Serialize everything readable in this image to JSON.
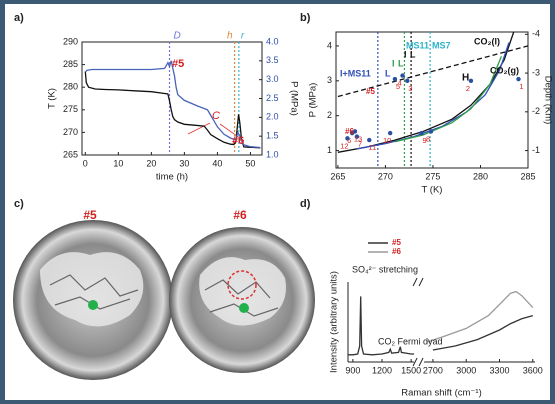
{
  "figure": {
    "panels": [
      "a)",
      "b)",
      "c)",
      "d)"
    ],
    "photos": {
      "labels": [
        "#5",
        "#6"
      ]
    }
  },
  "chart_data": [
    {
      "type": "line",
      "xlabel": "time (h)",
      "ylabel": "T (K)",
      "y2label": "P (MPa)",
      "xlim": [
        -1,
        53.5
      ],
      "xticks": [
        0,
        10,
        20,
        30,
        40,
        50
      ],
      "ylim": [
        265,
        290
      ],
      "yticks": [
        265,
        270,
        275,
        280,
        285,
        290
      ],
      "y2lim": [
        1.0,
        4.0
      ],
      "y2ticks": [
        {
          "value": 1.0,
          "label": "1.0"
        },
        1.5,
        {
          "value": 2.0,
          "label": "2.0"
        },
        2.5,
        {
          "value": 3.0,
          "label": "3.0"
        },
        3.5,
        {
          "value": 4.0,
          "label": "4.0"
        }
      ],
      "series": [
        {
          "color": "#111111",
          "x": [
            0,
            0.3,
            1,
            3,
            6,
            10,
            15,
            20,
            24,
            25,
            25.5,
            26,
            26.5,
            27,
            28,
            30,
            33,
            36,
            37,
            38,
            40,
            42,
            44,
            45,
            45.6,
            46,
            46.4,
            46.8,
            47.3,
            48,
            50,
            53
          ],
          "values": [
            283.5,
            281,
            280,
            279.6,
            279.5,
            279.4,
            279.2,
            279,
            278.6,
            278.5,
            277,
            275,
            273.5,
            272.8,
            272.3,
            271.8,
            271.6,
            271.4,
            270.5,
            269.5,
            268.6,
            267.8,
            267.4,
            267.3,
            268,
            271,
            274,
            272,
            268.5,
            266.8,
            266.7,
            266.6
          ]
        },
        {
          "color": "#4a63b8",
          "axis": "y2",
          "x": [
            0,
            0.5,
            2,
            10,
            20,
            24,
            25,
            25.5,
            26,
            26.5,
            27,
            27.5,
            28,
            30,
            34,
            37,
            38,
            39,
            40,
            42,
            44,
            45.5,
            46.2,
            46.8,
            47.5,
            48,
            50,
            53
          ],
          "values": [
            3.2,
            3.25,
            3.27,
            3.27,
            3.27,
            3.3,
            3.45,
            3.35,
            3.5,
            3.3,
            3.1,
            2.8,
            2.6,
            2.45,
            2.3,
            2.2,
            2.05,
            1.9,
            1.75,
            1.55,
            1.45,
            1.4,
            1.6,
            1.5,
            1.35,
            1.27,
            1.22,
            1.2
          ]
        }
      ],
      "vlines": [
        {
          "value": 25.5,
          "label": "D",
          "color": "#6f74d6"
        },
        {
          "value": 45.2,
          "label": "h",
          "color": "#e0893a"
        },
        {
          "value": 46.5,
          "label": "r",
          "color": "#3ab3c6"
        }
      ],
      "annotations": [
        "#5",
        "#6",
        "C"
      ]
    },
    {
      "type": "line",
      "xlabel": "T (K)",
      "ylabel": "P (MPa)",
      "y2label": "Depth (Km)",
      "xlim": [
        264.8,
        285
      ],
      "xticks": [
        265,
        270,
        275,
        280,
        285
      ],
      "ylim": [
        0.5,
        4.4
      ],
      "yticks": [
        1,
        2,
        3,
        4
      ],
      "y2lim": [
        -0.55,
        -4.06
      ],
      "y2ticks": [
        -1,
        -2,
        -3,
        -4
      ],
      "series": [
        {
          "color": "#111111",
          "x": [
            265,
            268,
            271,
            274,
            277,
            279,
            281,
            282.5,
            283.5
          ],
          "values": [
            0.95,
            1.1,
            1.3,
            1.55,
            1.9,
            2.3,
            2.9,
            3.6,
            4.4
          ]
        },
        {
          "color": "#3050b8",
          "x": [
            267,
            270,
            273,
            276,
            278.5,
            280.5,
            282,
            283
          ],
          "values": [
            1.05,
            1.2,
            1.4,
            1.7,
            2.1,
            2.6,
            3.3,
            4.1
          ]
        },
        {
          "color": "#2e9e4a",
          "x": [
            271,
            274,
            277,
            279,
            281,
            282.2
          ],
          "values": [
            1.25,
            1.45,
            1.8,
            2.2,
            2.9,
            3.7
          ]
        },
        {
          "color": "#111111",
          "dash": true,
          "x": [
            265,
            285
          ],
          "values": [
            2.55,
            4.0
          ]
        }
      ],
      "vlines": [
        {
          "value": 269.2,
          "color": "#3050b8"
        },
        {
          "value": 272.0,
          "color": "#2e9e4a"
        },
        {
          "value": 272.7,
          "color": "#111111"
        },
        {
          "value": 274.7,
          "color": "#2bb3c8"
        }
      ],
      "points": {
        "color": "#2a4fa0",
        "x": [
          284,
          279,
          272.3,
          271.8,
          271.0,
          266.5,
          267.0,
          274.8,
          273.8,
          270.5,
          268.3,
          266.0,
          266.8
        ],
        "values": [
          3.05,
          3.0,
          3.0,
          3.15,
          3.05,
          1.5,
          1.4,
          1.55,
          1.5,
          1.5,
          1.3,
          1.35,
          1.55
        ],
        "labels": [
          "1",
          "2",
          "3",
          "4",
          "5",
          "6",
          "7",
          "8",
          "9",
          "10",
          "11",
          "12",
          "13"
        ]
      },
      "annotations": [
        "CO₂(l)",
        "CO₂(g)",
        "H",
        "I+MS11",
        "L",
        "MS11",
        "MS7",
        "I",
        "L",
        "I",
        "L",
        "#5",
        "#6"
      ]
    },
    {
      "type": "line",
      "xlabel": "Raman shift (cm⁻¹)",
      "ylabel": "Intensity (arbitrary units)",
      "xlim": [
        850,
        3620
      ],
      "xbreak": [
        1530,
        2620
      ],
      "xticks": [
        900,
        1200,
        1500,
        2700,
        3000,
        3300,
        3600
      ],
      "ylim": [
        0,
        100
      ],
      "series": [
        {
          "name": "#5",
          "color": "#333333",
          "x": [
            850,
            900,
            950,
            970,
            981,
            990,
            1010,
            1100,
            1200,
            1270,
            1285,
            1300,
            1370,
            1388,
            1400,
            1500,
            1530,
            2000,
            2700,
            2900,
            3100,
            3300,
            3400,
            3500,
            3600
          ],
          "values": [
            9,
            9,
            10,
            20,
            82,
            20,
            10,
            9,
            10,
            12,
            16,
            11,
            12,
            19,
            12,
            10,
            10,
            null,
            15,
            20,
            28,
            40,
            48,
            54,
            58
          ]
        },
        {
          "name": "#6",
          "color": "#9a9a9a",
          "x": [
            2650,
            2800,
            3000,
            3200,
            3300,
            3400,
            3450,
            3500,
            3600
          ],
          "values": [
            25,
            32,
            42,
            58,
            72,
            86,
            88,
            83,
            68
          ]
        }
      ],
      "annotations": [
        "SO₄²⁻ stretching",
        "CO₂ Fermi dyad"
      ]
    }
  ]
}
